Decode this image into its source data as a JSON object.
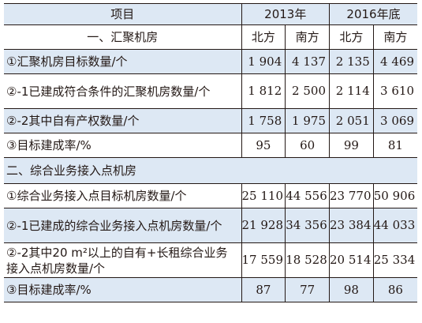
{
  "header": {
    "item": "项目",
    "y2013": "2013年",
    "y2016": "2016年底"
  },
  "section1": {
    "title": "一、汇聚机房",
    "sub": [
      "北方",
      "南方",
      "北方",
      "南方"
    ]
  },
  "rows1": [
    {
      "label": "①汇聚机房目标数量/个",
      "values": [
        "1 904",
        "4 137",
        "2 135",
        "4 469"
      ]
    },
    {
      "label": "②-1已建成符合条件的汇聚机房数量/个",
      "values": [
        "1 812",
        "2 500",
        "2 114",
        "3 610"
      ]
    },
    {
      "label": "②-2其中自有产权数量/个",
      "values": [
        "1 758",
        "1 975",
        "2 051",
        "3 069"
      ]
    },
    {
      "label": "③目标建成率/%",
      "values": [
        "95",
        "60",
        "99",
        "81"
      ]
    }
  ],
  "section2": {
    "title": "二、综合业务接入点机房"
  },
  "rows2": [
    {
      "label": "①综合业务接入点目标机房数量/个",
      "values": [
        "25 110",
        "44 556",
        "23 770",
        "50 906"
      ]
    },
    {
      "label": "②-1已建成的综合业务接入点机房数量/个",
      "values": [
        "21 928",
        "34 356",
        "23 384",
        "44 033"
      ]
    },
    {
      "label": "②-2其中20 m²以上的自有+长租综合业务接入点机房数量/个",
      "values": [
        "17 559",
        "18 528",
        "20 514",
        "25 334"
      ]
    },
    {
      "label": "③目标建成率/%",
      "values": [
        "87",
        "77",
        "98",
        "86"
      ]
    }
  ]
}
